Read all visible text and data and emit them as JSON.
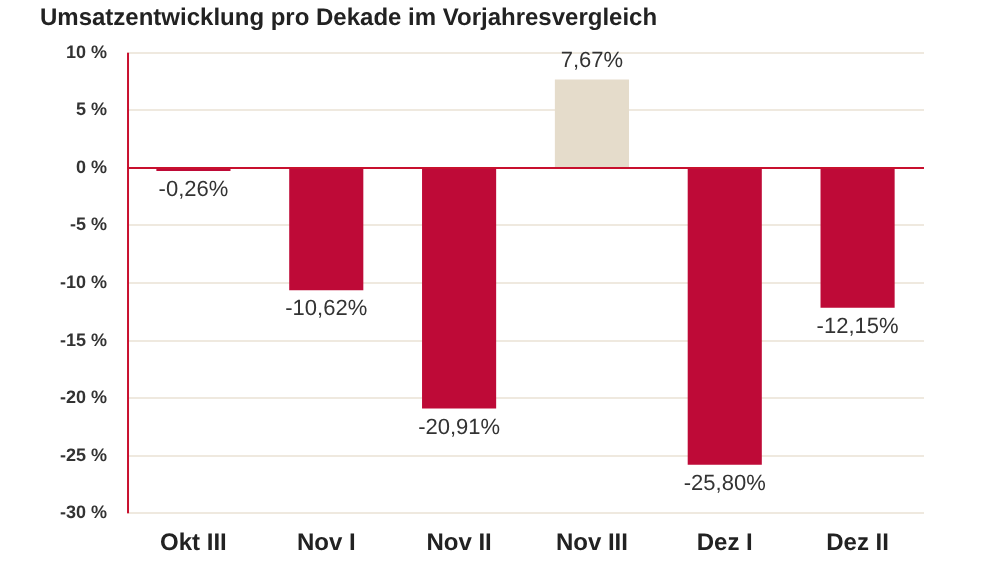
{
  "chart_data": {
    "type": "bar",
    "title": "Umsatzentwicklung pro Dekade im Vorjahresvergleich",
    "categories": [
      "Okt III",
      "Nov I",
      "Nov II",
      "Nov III",
      "Dez I",
      "Dez II"
    ],
    "values": [
      -0.26,
      -10.62,
      -20.91,
      7.67,
      -25.8,
      -12.15
    ],
    "colors": [
      "#be0a37",
      "#be0a37",
      "#be0a37",
      "#e5dccb",
      "#be0a37",
      "#be0a37"
    ],
    "value_labels": [
      "-0,26%",
      "-10,62%",
      "-20,91%",
      "7,67%",
      "-25,80%",
      "-12,15%"
    ],
    "ylim": [
      -30,
      10
    ],
    "yticks": [
      {
        "value": -30,
        "label": "-30 %"
      },
      {
        "value": -25,
        "label": "-25 %"
      },
      {
        "value": -20,
        "label": "-20 %"
      },
      {
        "value": -15,
        "label": "-15 %"
      },
      {
        "value": -10,
        "label": "-10 %"
      },
      {
        "value": -5,
        "label": "-5 %"
      },
      {
        "value": 0,
        "label": "0 %"
      },
      {
        "value": 5,
        "label": "5 %"
      },
      {
        "value": 10,
        "label": "10 %"
      }
    ],
    "ref_lines": [
      {
        "axis": "y",
        "value": 0,
        "color": "#c8102e"
      }
    ],
    "grid": "y",
    "legend": false
  }
}
